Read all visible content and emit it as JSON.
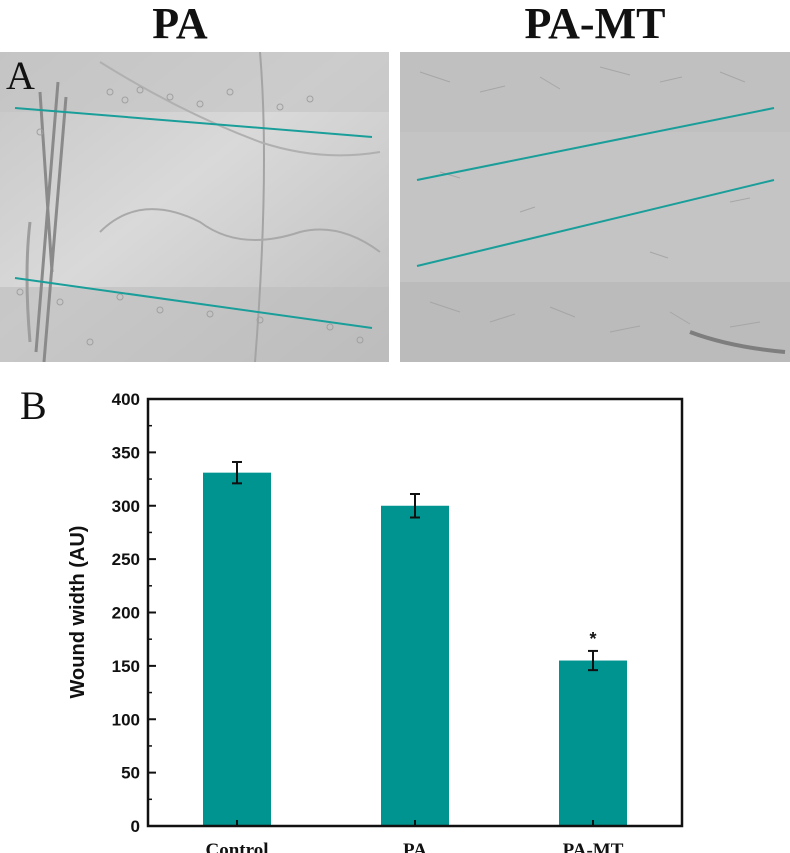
{
  "panel_a": {
    "letter": "A",
    "titles": [
      "PA",
      "PA-MT"
    ],
    "line_color": "#1a9e9a"
  },
  "panel_b": {
    "letter": "B"
  },
  "chart_data": {
    "type": "bar",
    "categories": [
      "Control",
      "PA",
      "PA-MT"
    ],
    "values": [
      331,
      300,
      155
    ],
    "errors": [
      10,
      11,
      9
    ],
    "annotations": [
      "",
      "",
      "*"
    ],
    "ylabel": "Wound width (AU)",
    "xlabel": "",
    "ylim": [
      0,
      400
    ],
    "yticks": [
      0,
      50,
      100,
      150,
      200,
      250,
      300,
      350,
      400
    ],
    "bar_color": "#009490",
    "grid": false
  }
}
